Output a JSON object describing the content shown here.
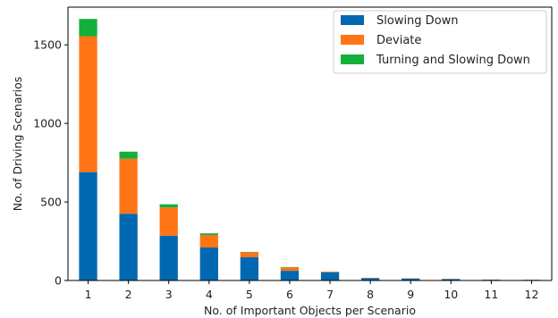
{
  "chart_data": {
    "type": "bar",
    "stacked": true,
    "categories": [
      "1",
      "2",
      "3",
      "4",
      "5",
      "6",
      "7",
      "8",
      "9",
      "10",
      "11",
      "12"
    ],
    "series": [
      {
        "name": "Slowing Down",
        "color": "#0068b0",
        "values": [
          690,
          425,
          285,
          210,
          148,
          62,
          52,
          15,
          13,
          9,
          5,
          4
        ]
      },
      {
        "name": "Deviate",
        "color": "#ff7415",
        "values": [
          865,
          350,
          180,
          80,
          32,
          22,
          4,
          2,
          1,
          1,
          1,
          1
        ]
      },
      {
        "name": "Turning and Slowing Down",
        "color": "#13b03a",
        "values": [
          110,
          45,
          20,
          10,
          2,
          2,
          1,
          0,
          0,
          0,
          0,
          0
        ]
      }
    ],
    "xlabel": "No. of Important Objects per Scenario",
    "ylabel": "No. of Driving Scenarios",
    "ylim": [
      0,
      1740
    ],
    "yticks": [
      0,
      500,
      1000,
      1500
    ],
    "grid": false,
    "legend_position": "top-right"
  }
}
